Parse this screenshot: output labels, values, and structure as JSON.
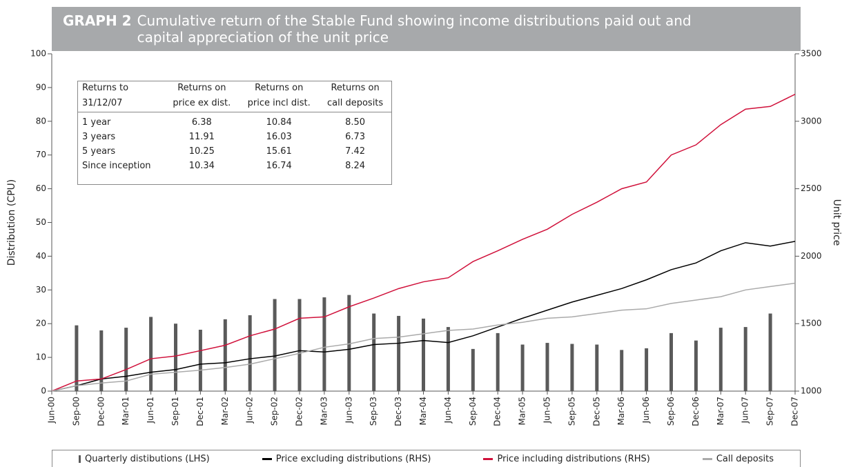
{
  "chart_data": {
    "type": "line",
    "title_label": "GRAPH 2",
    "title": "Cumulative return of the Stable Fund showing income distributions paid out and capital appreciation of the unit price",
    "ylabel": "Distribution (CPU)",
    "y2label": "Unit price",
    "ylim": [
      0,
      100
    ],
    "yticks": [
      0,
      10,
      20,
      30,
      40,
      50,
      60,
      70,
      80,
      90,
      100
    ],
    "y2lim": [
      1000,
      3500
    ],
    "y2ticks": [
      1000,
      1500,
      2000,
      2500,
      3000,
      3500
    ],
    "categories": [
      "Jun-00",
      "Sep-00",
      "Dec-00",
      "Mar-01",
      "Jun-01",
      "Sep-01",
      "Dec-01",
      "Mar-02",
      "Jun-02",
      "Sep-02",
      "Dec-02",
      "Mar-03",
      "Jun-03",
      "Sep-03",
      "Dec-03",
      "Mar-04",
      "Jun-04",
      "Sep-04",
      "Dec-04",
      "Mar-05",
      "Jun-05",
      "Sep-05",
      "Dec-05",
      "Mar-06",
      "Jun-06",
      "Sep-06",
      "Dec-06",
      "Mar-07",
      "Jun-07",
      "Sep-07",
      "Dec-07"
    ],
    "series": [
      {
        "name": "Quarterly distibutions (LHS)",
        "type": "bar",
        "color": "#5a5a5a",
        "values": [
          null,
          19.5,
          18,
          18.8,
          22,
          20,
          18.2,
          21.3,
          22.5,
          27.3,
          27.3,
          27.8,
          28.5,
          23,
          22.3,
          21.5,
          19,
          12.5,
          17.2,
          13.8,
          14.3,
          14,
          13.8,
          12.2,
          12.7,
          17.2,
          15,
          18.8,
          19,
          23,
          null
        ]
      },
      {
        "name": "Price excluding distributions (RHS)",
        "type": "line",
        "axis": "y2",
        "color": "#000000",
        "values": [
          1000,
          1040,
          1090,
          1110,
          1140,
          1160,
          1200,
          1210,
          1240,
          1260,
          1300,
          1290,
          1310,
          1345,
          1355,
          1375,
          1360,
          1410,
          1475,
          1540,
          1600,
          1660,
          1710,
          1760,
          1825,
          1900,
          1950,
          2040,
          2100,
          2075,
          2110
        ]
      },
      {
        "name": "Price including distributions (RHS)",
        "type": "line",
        "axis": "y2",
        "color": "#d0103a",
        "values": [
          1000,
          1075,
          1090,
          1160,
          1240,
          1260,
          1300,
          1340,
          1410,
          1460,
          1540,
          1550,
          1625,
          1690,
          1760,
          1810,
          1840,
          1960,
          2040,
          2125,
          2200,
          2310,
          2400,
          2500,
          2550,
          2750,
          2825,
          2975,
          3090,
          3110,
          3200
        ]
      },
      {
        "name": "Call deposits",
        "type": "line",
        "axis": "y2",
        "color": "#aaaaaa",
        "values": [
          1000,
          1040,
          1060,
          1075,
          1125,
          1140,
          1155,
          1175,
          1200,
          1240,
          1280,
          1325,
          1350,
          1390,
          1400,
          1425,
          1450,
          1460,
          1490,
          1510,
          1540,
          1550,
          1575,
          1600,
          1610,
          1650,
          1675,
          1700,
          1750,
          1775,
          1800
        ]
      }
    ],
    "table": {
      "header": [
        [
          "Returns to",
          "31/12/07"
        ],
        [
          "Returns on",
          "price ex dist."
        ],
        [
          "Returns on",
          "price incl dist."
        ],
        [
          "Returns on",
          "call deposits"
        ]
      ],
      "rows": [
        [
          "1 year",
          "6.38",
          "10.84",
          "8.50"
        ],
        [
          "3 years",
          "11.91",
          "16.03",
          "6.73"
        ],
        [
          "5 years",
          "10.25",
          "15.61",
          "7.42"
        ],
        [
          "Since inception",
          "10.34",
          "16.74",
          "8.24"
        ]
      ]
    }
  }
}
